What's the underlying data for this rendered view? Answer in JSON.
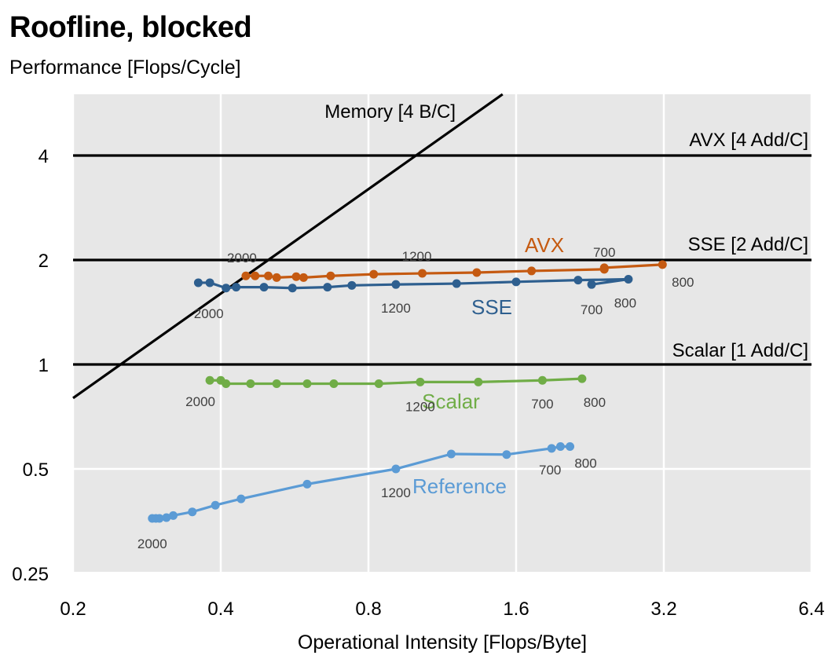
{
  "title": "Roofline, blocked",
  "chart_data": {
    "type": "line",
    "title": "Roofline, blocked",
    "ylabel": "Performance [Flops/Cycle]",
    "xlabel": "Operational Intensity [Flops/Byte]",
    "xscale": "log2",
    "yscale": "log2",
    "xlim": [
      0.2,
      6.4
    ],
    "ylim": [
      0.25,
      5.6
    ],
    "xticks": [
      0.2,
      0.4,
      0.8,
      1.6,
      3.2,
      6.4
    ],
    "xtick_labels": [
      "0.2",
      "0.4",
      "0.8",
      "1.6",
      "3.2",
      "6.4"
    ],
    "yticks": [
      0.25,
      0.5,
      1,
      2,
      4
    ],
    "ytick_labels": [
      "0.25",
      "0.5",
      "1",
      "2",
      "4"
    ],
    "grid": true,
    "roofs": [
      {
        "label": "AVX [4 Add/C]",
        "y": 4
      },
      {
        "label": "SSE [2 Add/C]",
        "y": 2
      },
      {
        "label": "Scalar [1 Add/C]",
        "y": 1
      }
    ],
    "memory_roof": {
      "label": "Memory [4 B/C]",
      "bandwidth": 4
    },
    "series": [
      {
        "name": "AVX",
        "color": "#c55a11",
        "x": [
          0.45,
          0.47,
          0.5,
          0.52,
          0.57,
          0.59,
          0.67,
          0.82,
          1.03,
          1.33,
          1.72,
          2.42,
          2.42,
          3.18
        ],
        "y": [
          1.8,
          1.8,
          1.8,
          1.78,
          1.79,
          1.78,
          1.8,
          1.82,
          1.83,
          1.84,
          1.86,
          1.88,
          1.9,
          1.94
        ],
        "point_labels": [
          {
            "i": 0,
            "text": "2000"
          },
          {
            "i": 8,
            "text": "1200"
          },
          {
            "i": 11,
            "text": "700"
          },
          {
            "i": 13,
            "text": "800"
          }
        ]
      },
      {
        "name": "SSE",
        "color": "#2e5f8f",
        "x": [
          0.36,
          0.38,
          0.41,
          0.43,
          0.49,
          0.56,
          0.66,
          0.74,
          0.91,
          1.21,
          1.6,
          2.14,
          2.71,
          2.28
        ],
        "y": [
          1.72,
          1.72,
          1.66,
          1.67,
          1.67,
          1.66,
          1.67,
          1.69,
          1.7,
          1.71,
          1.73,
          1.75,
          1.76,
          1.7
        ],
        "point_labels": [
          {
            "i": 2,
            "text": "2000"
          },
          {
            "i": 8,
            "text": "1200"
          },
          {
            "i": 13,
            "text": "700"
          },
          {
            "i": 12,
            "text": "800"
          }
        ]
      },
      {
        "name": "Scalar",
        "color": "#70ad47",
        "x": [
          0.38,
          0.4,
          0.41,
          0.46,
          0.52,
          0.6,
          0.68,
          0.84,
          1.02,
          1.34,
          1.81,
          2.18
        ],
        "y": [
          0.9,
          0.9,
          0.88,
          0.88,
          0.88,
          0.88,
          0.88,
          0.88,
          0.89,
          0.89,
          0.9,
          0.91
        ],
        "point_labels": [
          {
            "i": 0,
            "text": "2000"
          },
          {
            "i": 8,
            "text": "1200"
          },
          {
            "i": 10,
            "text": "700"
          },
          {
            "i": 11,
            "text": "800"
          }
        ]
      },
      {
        "name": "Reference",
        "color": "#5b9bd5",
        "x": [
          0.29,
          0.295,
          0.3,
          0.31,
          0.32,
          0.35,
          0.39,
          0.44,
          0.6,
          0.91,
          1.18,
          1.53,
          1.89,
          1.97,
          2.06
        ],
        "y": [
          0.36,
          0.36,
          0.36,
          0.362,
          0.367,
          0.376,
          0.393,
          0.41,
          0.452,
          0.5,
          0.552,
          0.55,
          0.573,
          0.58,
          0.58
        ],
        "point_labels": [
          {
            "i": 0,
            "text": "2000"
          },
          {
            "i": 9,
            "text": "1200"
          },
          {
            "i": 12,
            "text": "700"
          },
          {
            "i": 14,
            "text": "800"
          }
        ]
      }
    ]
  }
}
